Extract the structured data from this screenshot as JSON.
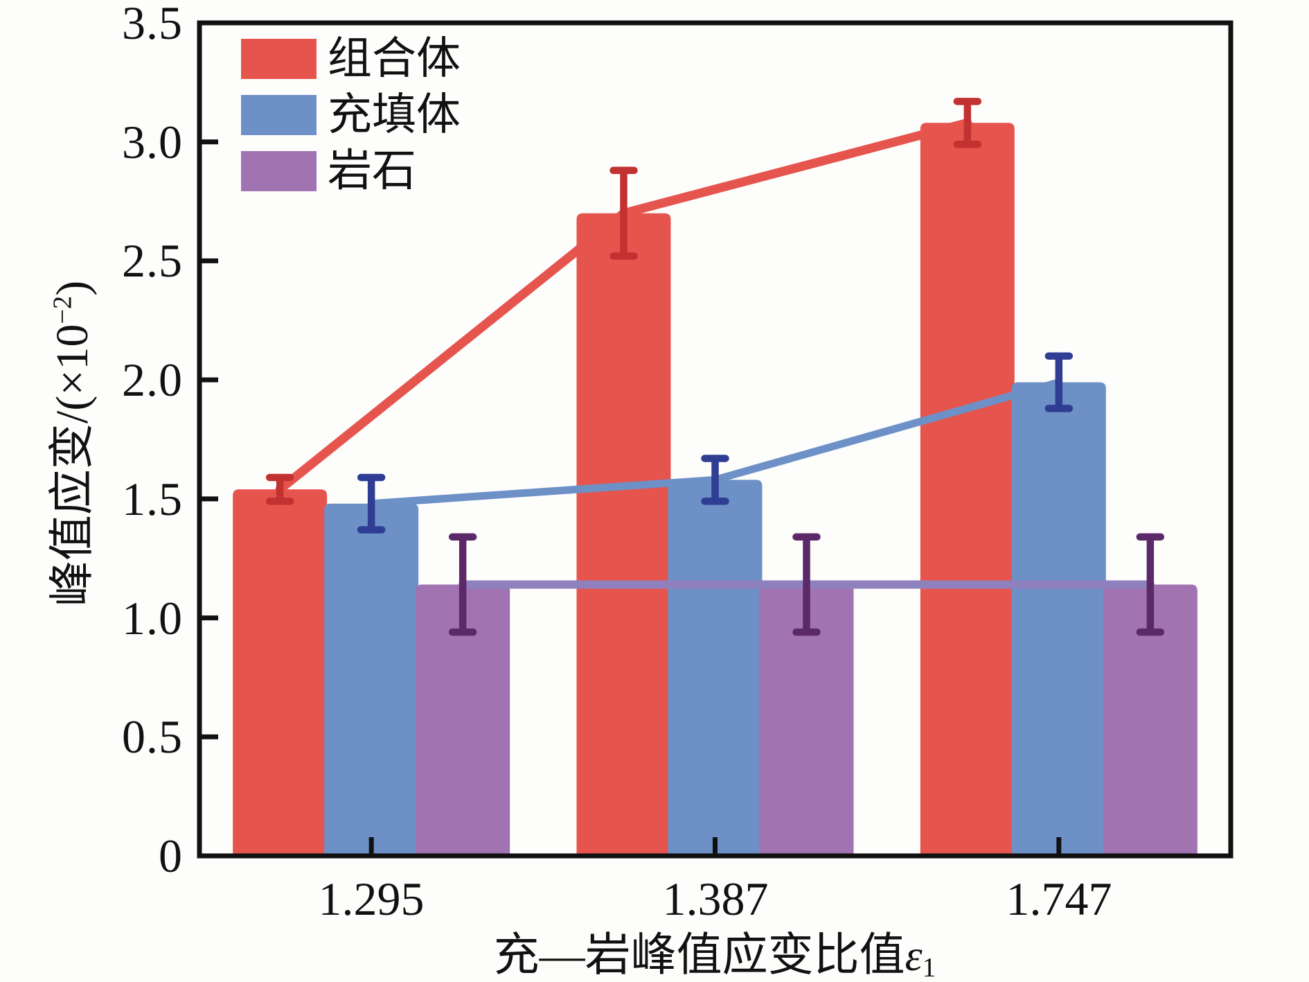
{
  "chart_data": {
    "type": "bar",
    "categories": [
      "1.295",
      "1.387",
      "1.747"
    ],
    "xlabel_main": "充—岩峰值应变比值",
    "xlabel_symbol": "ε",
    "xlabel_sub": "1",
    "ylabel_main": "峰值应变/(×10",
    "ylabel_sup": "−2",
    "ylabel_close": ")",
    "ylim": [
      0,
      3.5
    ],
    "ytick_step": 0.5,
    "ytick_labels": [
      "3.5",
      "3.0",
      "2.5",
      "2.0",
      "1.5",
      "1.0",
      "0.5",
      "0"
    ],
    "grid": false,
    "legend_position": "inside-top-left",
    "axis_color": "#111111",
    "bar_corner_radius": 9,
    "error_bars": true,
    "connect_lines": true,
    "series": [
      {
        "name": "组合体",
        "values": [
          1.54,
          2.7,
          3.08
        ],
        "errors": [
          0.05,
          0.18,
          0.09
        ],
        "bar_color": "#E6544E",
        "line_color": "#E6544E",
        "error_color": "#C23230"
      },
      {
        "name": "充填体",
        "values": [
          1.48,
          1.58,
          1.99
        ],
        "errors": [
          0.11,
          0.09,
          0.11
        ],
        "bar_color": "#6D90C7",
        "line_color": "#6D90C7",
        "error_color": "#2F3E93"
      },
      {
        "name": "岩石",
        "values": [
          1.14,
          1.14,
          1.14
        ],
        "errors": [
          0.2,
          0.2,
          0.2
        ],
        "bar_color": "#A173B1",
        "line_color": "#8F80BE",
        "error_color": "#5C2968"
      }
    ]
  }
}
